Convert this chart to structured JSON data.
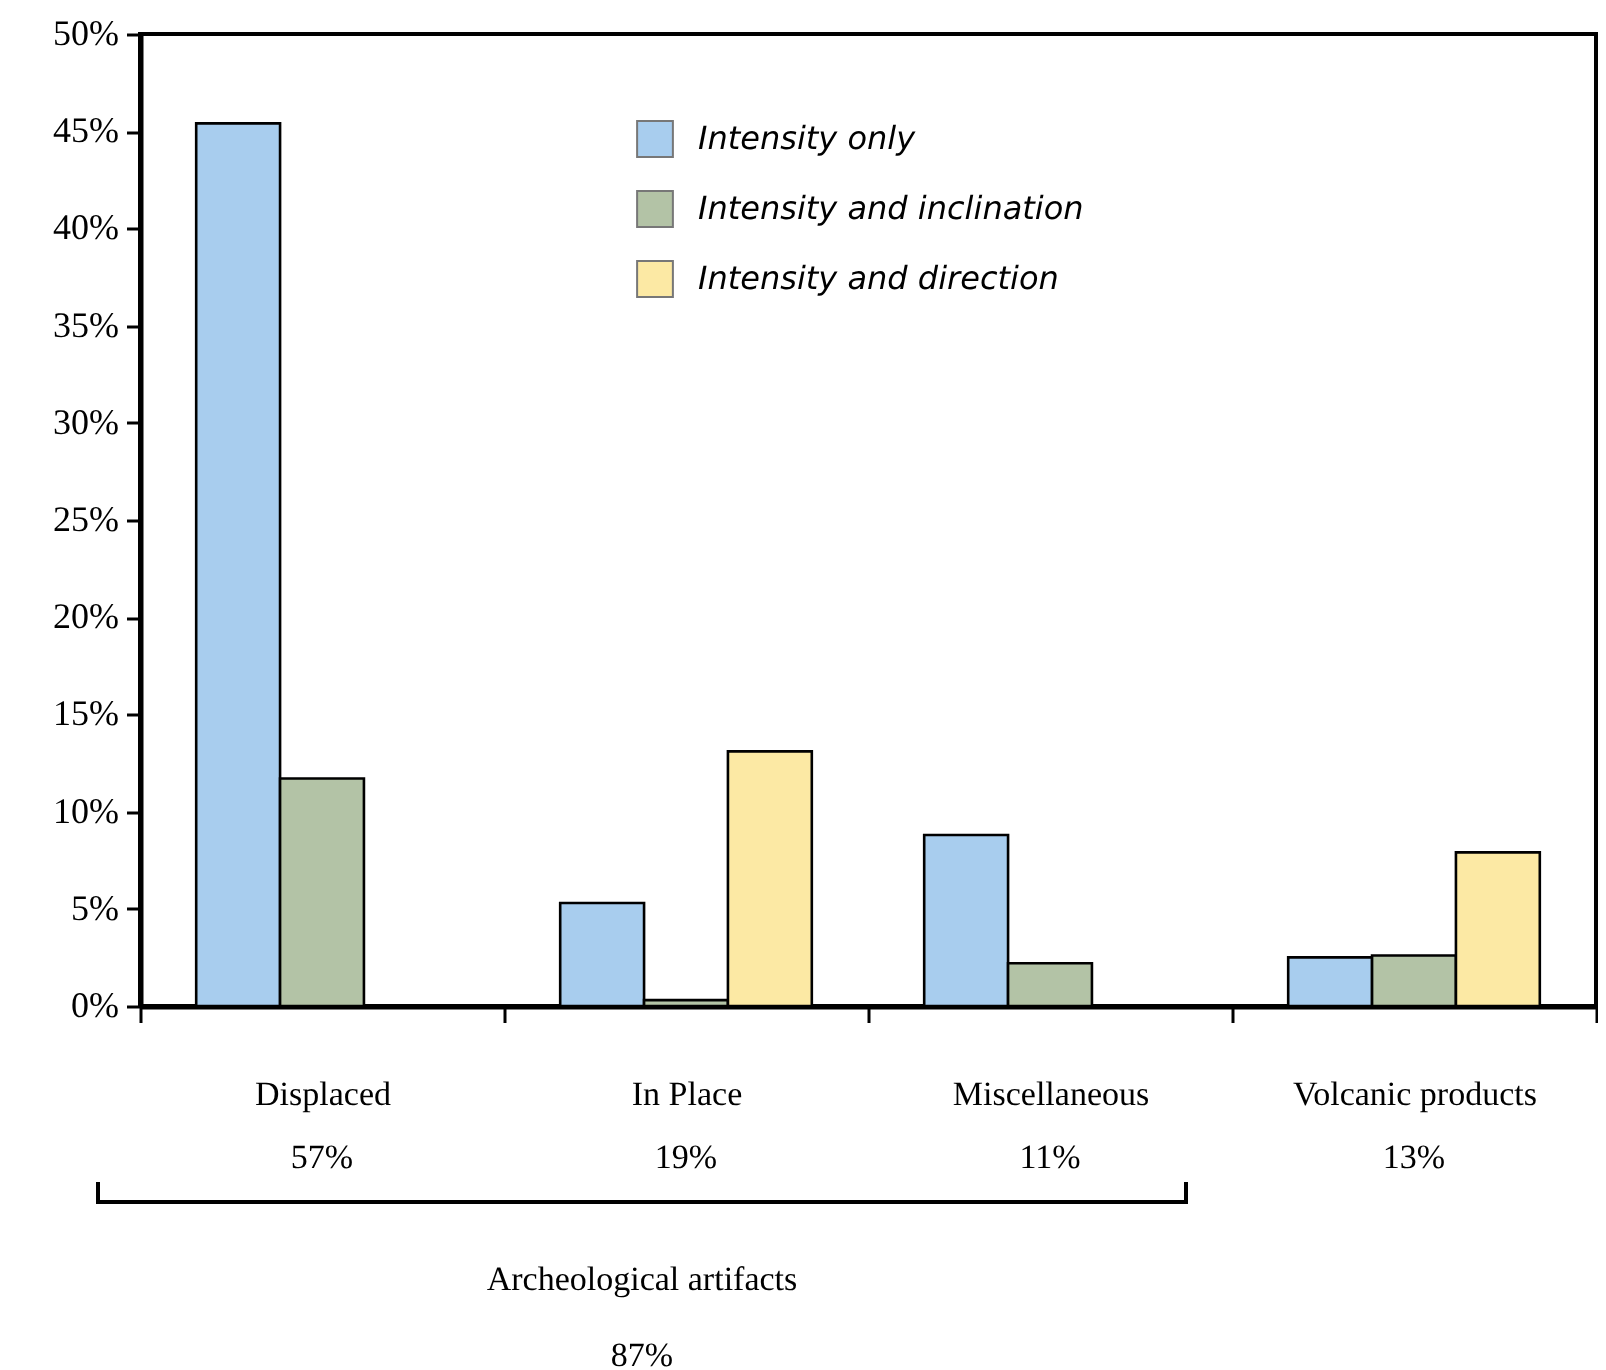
{
  "chart_data": {
    "type": "bar",
    "categories": [
      "Displaced",
      "In Place",
      "Miscellaneous",
      "Volcanic products"
    ],
    "series": [
      {
        "name": "Intensity only",
        "color": "#a8cdee",
        "values": [
          45.4,
          5.3,
          8.8,
          2.5
        ]
      },
      {
        "name": "Intensity and inclination",
        "color": "#b3c3a6",
        "values": [
          11.7,
          0.3,
          2.2,
          2.6
        ]
      },
      {
        "name": "Intensity and direction",
        "color": "#fce9a4",
        "values": [
          null,
          13.1,
          null,
          7.9
        ]
      }
    ],
    "ylim": [
      0,
      50
    ],
    "yticks": [
      {
        "value": 0,
        "label": "0%"
      },
      {
        "value": 5,
        "label": "5%"
      },
      {
        "value": 10,
        "label": "10%"
      },
      {
        "value": 15,
        "label": "15%"
      },
      {
        "value": 20,
        "label": "20%"
      },
      {
        "value": 25,
        "label": "25%"
      },
      {
        "value": 30,
        "label": "30%"
      },
      {
        "value": 35,
        "label": "35%"
      },
      {
        "value": 40,
        "label": "40%"
      },
      {
        "value": 45,
        "label": "45%"
      },
      {
        "value": 50,
        "label": "50%"
      }
    ],
    "grid": false,
    "legend": "top",
    "annotations": [
      "57%",
      "19%",
      "11%",
      "13%",
      "Archeological artifacts",
      "87%"
    ]
  }
}
